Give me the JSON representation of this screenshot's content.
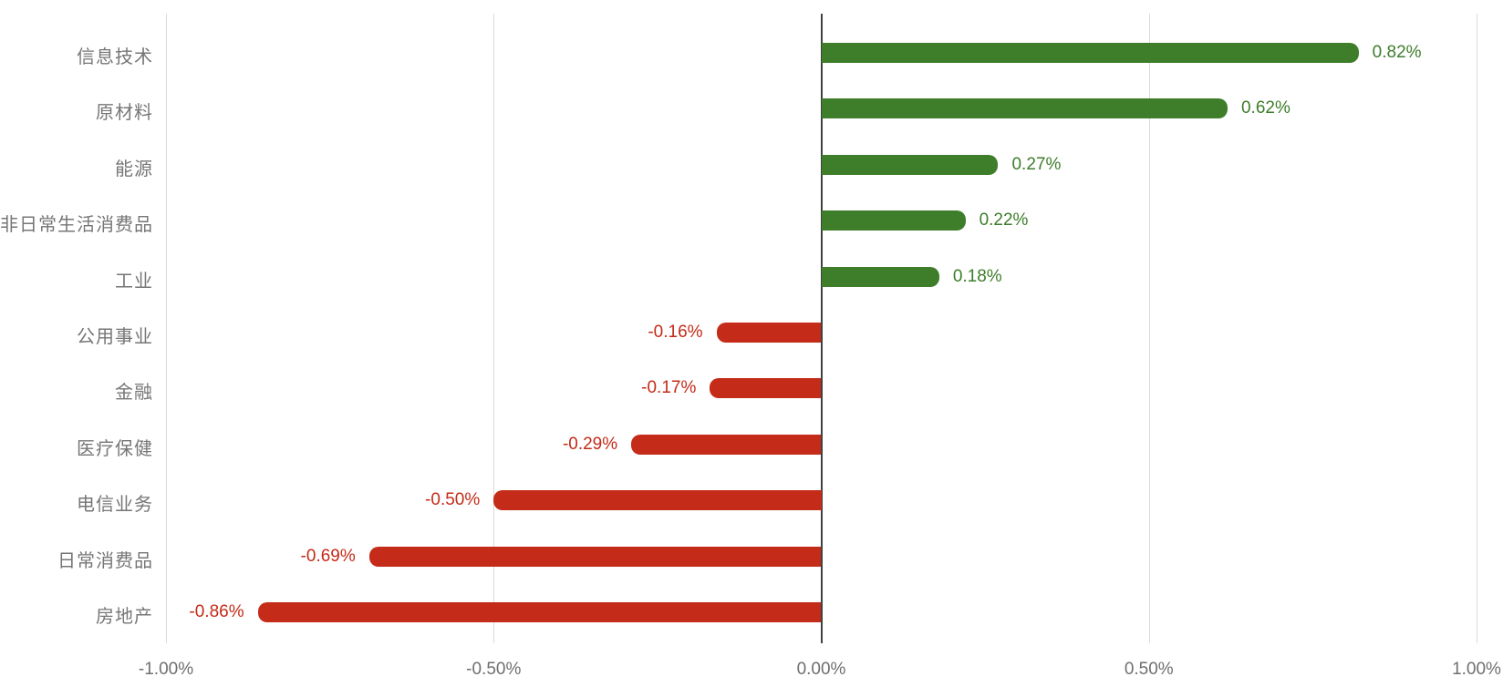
{
  "chart_data": {
    "type": "bar",
    "orientation": "horizontal",
    "title": "",
    "xlabel": "",
    "ylabel": "",
    "categories": [
      "信息技术",
      "原材料",
      "能源",
      "非日常生活消费品",
      "工业",
      "公用事业",
      "金融",
      "医疗保健",
      "电信业务",
      "日常消费品",
      "房地产"
    ],
    "values": [
      0.82,
      0.62,
      0.27,
      0.22,
      0.18,
      -0.16,
      -0.17,
      -0.29,
      -0.5,
      -0.69,
      -0.86
    ],
    "value_labels": [
      "0.82%",
      "0.62%",
      "0.27%",
      "0.22%",
      "0.18%",
      "-0.16%",
      "-0.17%",
      "-0.29%",
      "-0.50%",
      "-0.69%",
      "-0.86%"
    ],
    "xlim": [
      -1.0,
      1.0
    ],
    "x_ticks": [
      -1.0,
      -0.5,
      0.0,
      0.5,
      1.0
    ],
    "x_tick_labels": [
      "-1.00%",
      "-0.50%",
      "0.00%",
      "0.50%",
      "1.00%"
    ],
    "grid": true,
    "legend": "none",
    "colors": {
      "positive": "#3e7d2a",
      "negative": "#c42b18",
      "gridline": "#dadada",
      "zero_line": "#414141",
      "category_label": "#767676",
      "tick_label": "#6f6f6f",
      "background": "#ffffff"
    }
  }
}
